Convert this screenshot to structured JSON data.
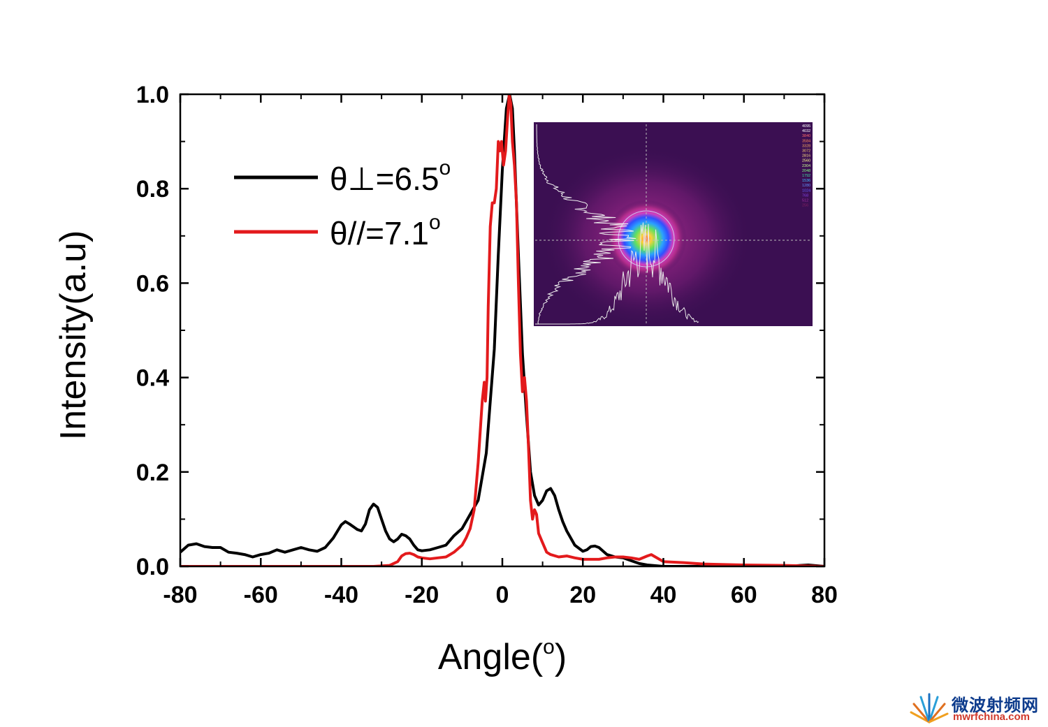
{
  "chart_data": {
    "type": "line",
    "xlabel_text": "Angle(",
    "xlabel_sup": "o",
    "xlabel_close": ")",
    "ylabel": "Intensity(a.u)",
    "xlim": [
      -80,
      80
    ],
    "ylim": [
      0,
      1.0
    ],
    "x_ticks": [
      -80,
      -60,
      -40,
      -20,
      0,
      20,
      40,
      60,
      80
    ],
    "x_tick_labels": [
      "-80",
      "-60",
      "-40",
      "-20",
      "0",
      "20",
      "40",
      "60",
      "80"
    ],
    "y_ticks": [
      0,
      0.2,
      0.4,
      0.6,
      0.8,
      1.0
    ],
    "y_tick_labels": [
      "0.0",
      "0.2",
      "0.4",
      "0.6",
      "0.8",
      "1.0"
    ],
    "grid": false,
    "legend_position": "top-left",
    "series": [
      {
        "name": "θ⊥=6.5",
        "name_sup": "o",
        "color": "#000000",
        "points": [
          [
            -80,
            0.03
          ],
          [
            -78,
            0.045
          ],
          [
            -76,
            0.048
          ],
          [
            -74,
            0.042
          ],
          [
            -72,
            0.04
          ],
          [
            -70,
            0.04
          ],
          [
            -68,
            0.03
          ],
          [
            -66,
            0.028
          ],
          [
            -64,
            0.025
          ],
          [
            -62,
            0.02
          ],
          [
            -60,
            0.025
          ],
          [
            -58,
            0.028
          ],
          [
            -56,
            0.035
          ],
          [
            -54,
            0.03
          ],
          [
            -52,
            0.035
          ],
          [
            -50,
            0.04
          ],
          [
            -48,
            0.035
          ],
          [
            -46,
            0.032
          ],
          [
            -44,
            0.04
          ],
          [
            -42,
            0.06
          ],
          [
            -40,
            0.088
          ],
          [
            -39,
            0.095
          ],
          [
            -38,
            0.09
          ],
          [
            -36,
            0.078
          ],
          [
            -35,
            0.075
          ],
          [
            -34,
            0.09
          ],
          [
            -33,
            0.12
          ],
          [
            -32,
            0.132
          ],
          [
            -31,
            0.125
          ],
          [
            -30,
            0.1
          ],
          [
            -29,
            0.075
          ],
          [
            -28,
            0.058
          ],
          [
            -27,
            0.052
          ],
          [
            -26,
            0.058
          ],
          [
            -25,
            0.068
          ],
          [
            -24,
            0.065
          ],
          [
            -23,
            0.058
          ],
          [
            -22,
            0.045
          ],
          [
            -21,
            0.035
          ],
          [
            -20,
            0.033
          ],
          [
            -18,
            0.035
          ],
          [
            -16,
            0.04
          ],
          [
            -14,
            0.045
          ],
          [
            -12,
            0.065
          ],
          [
            -10,
            0.08
          ],
          [
            -8,
            0.11
          ],
          [
            -6,
            0.14
          ],
          [
            -4,
            0.24
          ],
          [
            -2,
            0.46
          ],
          [
            -1,
            0.66
          ],
          [
            0,
            0.84
          ],
          [
            1,
            0.97
          ],
          [
            1.8,
            1.0
          ],
          [
            2.5,
            0.97
          ],
          [
            3,
            0.88
          ],
          [
            4,
            0.66
          ],
          [
            5,
            0.45
          ],
          [
            6,
            0.32
          ],
          [
            7,
            0.2
          ],
          [
            8,
            0.15
          ],
          [
            9,
            0.13
          ],
          [
            10,
            0.14
          ],
          [
            11,
            0.16
          ],
          [
            12,
            0.165
          ],
          [
            13,
            0.15
          ],
          [
            14,
            0.12
          ],
          [
            15,
            0.095
          ],
          [
            16,
            0.075
          ],
          [
            18,
            0.045
          ],
          [
            20,
            0.032
          ],
          [
            21,
            0.035
          ],
          [
            22,
            0.042
          ],
          [
            23,
            0.043
          ],
          [
            24,
            0.04
          ],
          [
            26,
            0.025
          ],
          [
            28,
            0.02
          ],
          [
            30,
            0.018
          ],
          [
            32,
            0.012
          ],
          [
            34,
            0.006
          ],
          [
            36,
            0.003
          ],
          [
            40,
            0.0
          ],
          [
            50,
            0.0
          ],
          [
            60,
            0.0
          ],
          [
            70,
            0.0
          ],
          [
            76,
            0.003
          ],
          [
            80,
            0.0
          ]
        ]
      },
      {
        "name": "θ//=7.1",
        "name_sup": "o",
        "color": "#e31a1c",
        "points": [
          [
            -80,
            0.0
          ],
          [
            -70,
            0.0
          ],
          [
            -60,
            0.0
          ],
          [
            -50,
            0.0
          ],
          [
            -40,
            0.0
          ],
          [
            -32,
            0.0
          ],
          [
            -28,
            0.002
          ],
          [
            -26,
            0.01
          ],
          [
            -25,
            0.022
          ],
          [
            -24,
            0.027
          ],
          [
            -23,
            0.028
          ],
          [
            -22,
            0.025
          ],
          [
            -21,
            0.02
          ],
          [
            -20,
            0.018
          ],
          [
            -18,
            0.016
          ],
          [
            -16,
            0.018
          ],
          [
            -14,
            0.02
          ],
          [
            -13,
            0.025
          ],
          [
            -12,
            0.03
          ],
          [
            -10,
            0.045
          ],
          [
            -9,
            0.06
          ],
          [
            -8,
            0.08
          ],
          [
            -7,
            0.12
          ],
          [
            -6,
            0.22
          ],
          [
            -5,
            0.35
          ],
          [
            -4.5,
            0.39
          ],
          [
            -4.2,
            0.35
          ],
          [
            -3.8,
            0.4
          ],
          [
            -3.5,
            0.55
          ],
          [
            -3,
            0.72
          ],
          [
            -2.5,
            0.77
          ],
          [
            -2,
            0.77
          ],
          [
            -1.5,
            0.8
          ],
          [
            -1,
            0.9
          ],
          [
            -0.6,
            0.88
          ],
          [
            -0.2,
            0.9
          ],
          [
            0.3,
            0.85
          ],
          [
            0.8,
            0.88
          ],
          [
            1.3,
            0.95
          ],
          [
            1.7,
            1.0
          ],
          [
            2.1,
            0.98
          ],
          [
            2.5,
            0.9
          ],
          [
            3,
            0.85
          ],
          [
            3.5,
            0.77
          ],
          [
            4,
            0.6
          ],
          [
            4.5,
            0.45
          ],
          [
            5,
            0.37
          ],
          [
            5.5,
            0.4
          ],
          [
            6,
            0.35
          ],
          [
            6.5,
            0.25
          ],
          [
            7,
            0.14
          ],
          [
            7.5,
            0.1
          ],
          [
            8,
            0.12
          ],
          [
            8.5,
            0.11
          ],
          [
            9,
            0.07
          ],
          [
            10,
            0.05
          ],
          [
            11,
            0.03
          ],
          [
            12,
            0.025
          ],
          [
            14,
            0.02
          ],
          [
            16,
            0.022
          ],
          [
            18,
            0.018
          ],
          [
            20,
            0.015
          ],
          [
            24,
            0.015
          ],
          [
            26,
            0.018
          ],
          [
            28,
            0.02
          ],
          [
            30,
            0.02
          ],
          [
            32,
            0.018
          ],
          [
            34,
            0.015
          ],
          [
            36,
            0.022
          ],
          [
            37,
            0.025
          ],
          [
            38,
            0.02
          ],
          [
            40,
            0.01
          ],
          [
            45,
            0.008
          ],
          [
            50,
            0.005
          ],
          [
            60,
            0.003
          ],
          [
            70,
            0.002
          ],
          [
            80,
            0.0
          ]
        ]
      }
    ],
    "inset": {
      "type": "heatmap",
      "description_free": true,
      "colorbar_labels": [
        "4095",
        "4032",
        "3840",
        "3584",
        "3328",
        "3072",
        "2816",
        "2560",
        "2304",
        "2048",
        "1792",
        "1536",
        "1280",
        "1024",
        "768",
        "512",
        "256"
      ],
      "colorbar_colors": [
        "#ffffff",
        "#ffffff",
        "#ff6a6a",
        "#ff8a5a",
        "#ffb060",
        "#ffd070",
        "#ffe080",
        "#ffff90",
        "#c8ff90",
        "#80ff80",
        "#40e0a0",
        "#40c0ff",
        "#6090ff",
        "#6060ff",
        "#8040e0",
        "#a030a0",
        "#802060"
      ]
    }
  },
  "watermark": {
    "cn": "微波射频网",
    "url": "mwrfchina.com"
  }
}
